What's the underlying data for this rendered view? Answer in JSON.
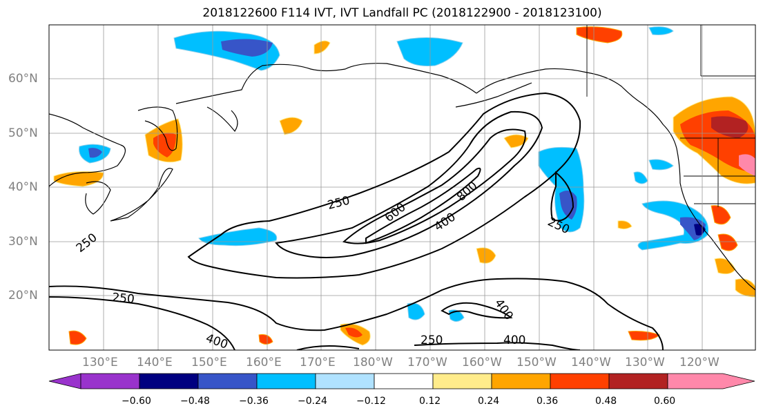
{
  "title": "2018122600 F114 IVT, IVT Landfall PC (2018122900 - 2018123100)",
  "lat_labels": [
    "60°N",
    "50°N",
    "40°N",
    "30°N",
    "20°N"
  ],
  "lon_labels": [
    "130°E",
    "140°E",
    "150°E",
    "160°E",
    "170°E",
    "180°W",
    "170°W",
    "160°W",
    "150°W",
    "140°W",
    "130°W",
    "120°W"
  ],
  "contour_labels": [
    "250",
    "600",
    "800",
    "400",
    "250",
    "250",
    "250",
    "400",
    "250",
    "400",
    "400"
  ],
  "colorbar": {
    "colors": [
      "#9933cc",
      "#000080",
      "#3755c8",
      "#00bfff",
      "#b0e2ff",
      "#ffffff",
      "#ffec8b",
      "#ffa500",
      "#ff4000",
      "#b22222",
      "#ff88aa"
    ],
    "ticks": [
      "−0.60",
      "−0.48",
      "−0.36",
      "−0.24",
      "−0.12",
      "0.12",
      "0.24",
      "0.36",
      "0.48",
      "0.60"
    ]
  }
}
